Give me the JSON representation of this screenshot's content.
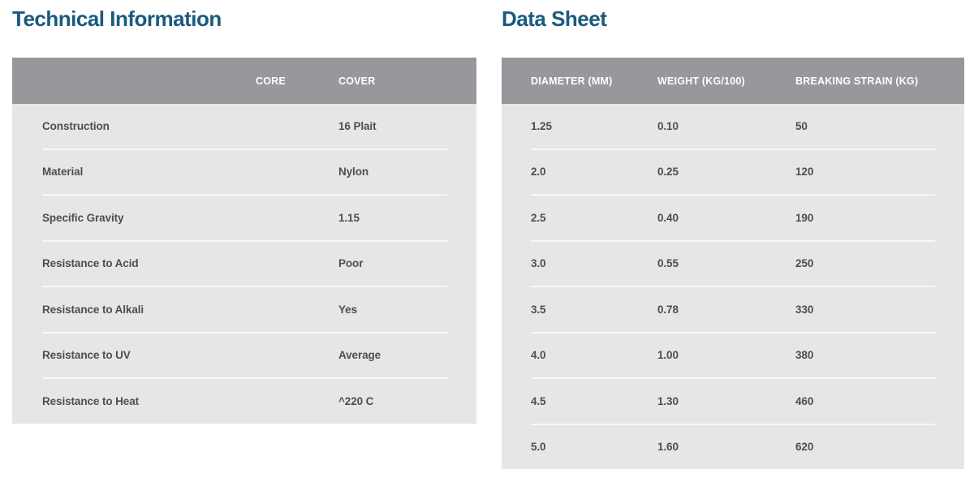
{
  "colors": {
    "title_text": "#1a5a7e",
    "header_bg": "#96989b",
    "header_text": "#ffffff",
    "body_bg": "#e6e6e7",
    "body_text": "#4d4e51",
    "separator": "#f8f8f8"
  },
  "technical_information": {
    "title": "Technical Information",
    "columns": [
      "",
      "CORE",
      "COVER"
    ],
    "rows": [
      {
        "label": "Construction",
        "core": "",
        "cover": "16 Plait"
      },
      {
        "label": "Material",
        "core": "",
        "cover": "Nylon"
      },
      {
        "label": "Specific Gravity",
        "core": "",
        "cover": "1.15"
      },
      {
        "label": "Resistance to Acid",
        "core": "",
        "cover": "Poor"
      },
      {
        "label": "Resistance to Alkali",
        "core": "",
        "cover": "Yes"
      },
      {
        "label": "Resistance to UV",
        "core": "",
        "cover": "Average"
      },
      {
        "label": "Resistance to Heat",
        "core": "",
        "cover": "^220 C"
      }
    ]
  },
  "data_sheet": {
    "title": "Data Sheet",
    "columns": [
      "DIAMETER (MM)",
      "WEIGHT (KG/100)",
      "BREAKING STRAIN (KG)"
    ],
    "rows": [
      [
        "1.25",
        "0.10",
        "50"
      ],
      [
        "2.0",
        "0.25",
        "120"
      ],
      [
        "2.5",
        "0.40",
        "190"
      ],
      [
        "3.0",
        "0.55",
        "250"
      ],
      [
        "3.5",
        "0.78",
        "330"
      ],
      [
        "4.0",
        "1.00",
        "380"
      ],
      [
        "4.5",
        "1.30",
        "460"
      ],
      [
        "5.0",
        "1.60",
        "620"
      ]
    ]
  }
}
